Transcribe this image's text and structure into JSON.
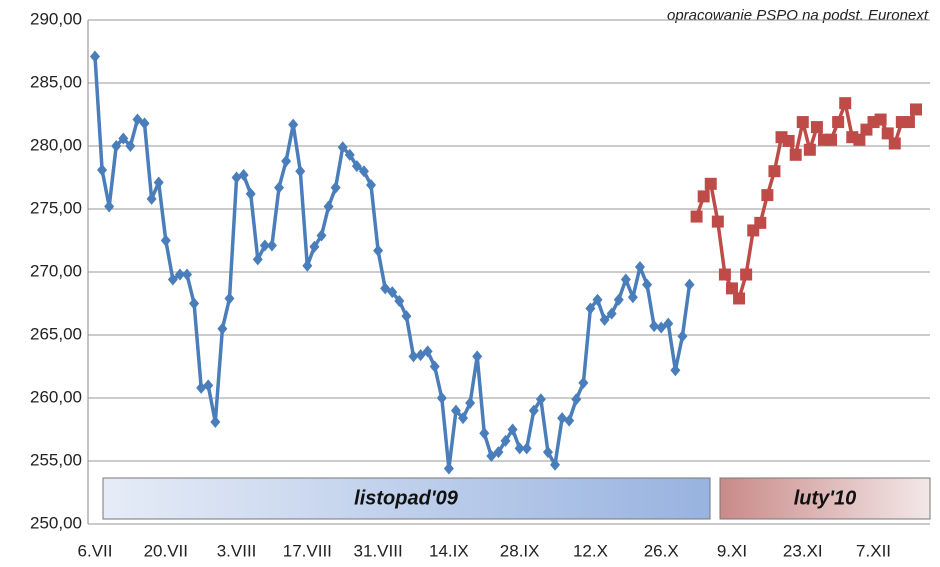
{
  "chart_data": {
    "type": "line",
    "annotation": "opracowanie PSPO na podst. Euronext",
    "bands": [
      "listopad'09",
      "luty'10"
    ],
    "categories": [
      "6.VII",
      null,
      null,
      null,
      null,
      null,
      null,
      null,
      null,
      null,
      "20.VII",
      null,
      null,
      null,
      null,
      null,
      null,
      null,
      null,
      null,
      "3.VIII",
      null,
      null,
      null,
      null,
      null,
      null,
      null,
      null,
      null,
      "17.VIII",
      null,
      null,
      null,
      null,
      null,
      null,
      null,
      null,
      null,
      "31.VIII",
      null,
      null,
      null,
      null,
      null,
      null,
      null,
      null,
      null,
      "14.IX",
      null,
      null,
      null,
      null,
      null,
      null,
      null,
      null,
      null,
      "28.IX",
      null,
      null,
      null,
      null,
      null,
      null,
      null,
      null,
      null,
      "12.X",
      null,
      null,
      null,
      null,
      null,
      null,
      null,
      null,
      null,
      "26.X",
      null,
      null,
      null,
      null,
      null,
      null,
      null,
      null,
      null,
      "9.XI",
      null,
      null,
      null,
      null,
      null,
      null,
      null,
      null,
      null,
      "23.XI",
      null,
      null,
      null,
      null,
      null,
      null,
      null,
      null,
      null,
      "7.XII",
      null,
      null,
      null,
      null,
      null,
      null
    ],
    "series": [
      {
        "name": "listopad'09",
        "color": "#4a7ebb",
        "marker": "diamond",
        "values": [
          287.1,
          278.1,
          275.2,
          280.0,
          280.6,
          280.0,
          282.1,
          281.8,
          275.8,
          277.1,
          272.5,
          269.4,
          269.8,
          269.8,
          267.5,
          260.8,
          261.0,
          258.1,
          265.5,
          267.9,
          277.5,
          277.7,
          276.2,
          271.0,
          272.1,
          272.1,
          276.7,
          278.8,
          281.7,
          278.0,
          270.5,
          272.0,
          272.9,
          275.2,
          276.7,
          279.9,
          279.3,
          278.4,
          278.0,
          276.9,
          271.7,
          268.7,
          268.4,
          267.7,
          266.5,
          263.3,
          263.4,
          263.7,
          262.5,
          260.0,
          254.4,
          259.0,
          258.4,
          259.6,
          263.3,
          257.2,
          255.4,
          255.7,
          256.6,
          257.5,
          256.0,
          256.0,
          259.0,
          259.9,
          255.7,
          254.7,
          258.4,
          258.2,
          259.9,
          261.2,
          267.1,
          267.8,
          266.2,
          266.7,
          267.8,
          269.4,
          268.0,
          270.4,
          269.0,
          265.7,
          265.6,
          265.9,
          262.2,
          264.9,
          269.0,
          null,
          null,
          null,
          null,
          null,
          null,
          null,
          null,
          null,
          null,
          null,
          null,
          null,
          null,
          null,
          null,
          null,
          null,
          null,
          null,
          null,
          null,
          null,
          null,
          null,
          null,
          null,
          null,
          null,
          null,
          null,
          null
        ]
      },
      {
        "name": "luty'10",
        "color": "#be4b48",
        "marker": "square",
        "values": [
          null,
          null,
          null,
          null,
          null,
          null,
          null,
          null,
          null,
          null,
          null,
          null,
          null,
          null,
          null,
          null,
          null,
          null,
          null,
          null,
          null,
          null,
          null,
          null,
          null,
          null,
          null,
          null,
          null,
          null,
          null,
          null,
          null,
          null,
          null,
          null,
          null,
          null,
          null,
          null,
          null,
          null,
          null,
          null,
          null,
          null,
          null,
          null,
          null,
          null,
          null,
          null,
          null,
          null,
          null,
          null,
          null,
          null,
          null,
          null,
          null,
          null,
          null,
          null,
          null,
          null,
          null,
          null,
          null,
          null,
          null,
          null,
          null,
          null,
          null,
          null,
          null,
          null,
          null,
          null,
          null,
          null,
          null,
          null,
          null,
          274.4,
          276.0,
          277.0,
          274.0,
          269.8,
          268.7,
          267.9,
          269.8,
          273.3,
          273.9,
          276.1,
          278.0,
          280.7,
          280.4,
          279.3,
          281.9,
          279.7,
          281.5,
          280.5,
          280.5,
          281.9,
          283.4,
          280.7,
          280.5,
          281.3,
          281.9,
          282.1,
          281.0,
          280.2,
          281.9,
          281.9,
          282.9
        ]
      }
    ],
    "ylim": [
      250,
      290
    ],
    "yticks": [
      {
        "value": 250,
        "label": "250,00"
      },
      {
        "value": 255,
        "label": "255,00"
      },
      {
        "value": 260,
        "label": "260,00"
      },
      {
        "value": 265,
        "label": "265,00"
      },
      {
        "value": 270,
        "label": "270,00"
      },
      {
        "value": 275,
        "label": "275,00"
      },
      {
        "value": 280,
        "label": "280,00"
      },
      {
        "value": 285,
        "label": "285,00"
      },
      {
        "value": 290,
        "label": "290,00"
      }
    ],
    "grid": true
  }
}
